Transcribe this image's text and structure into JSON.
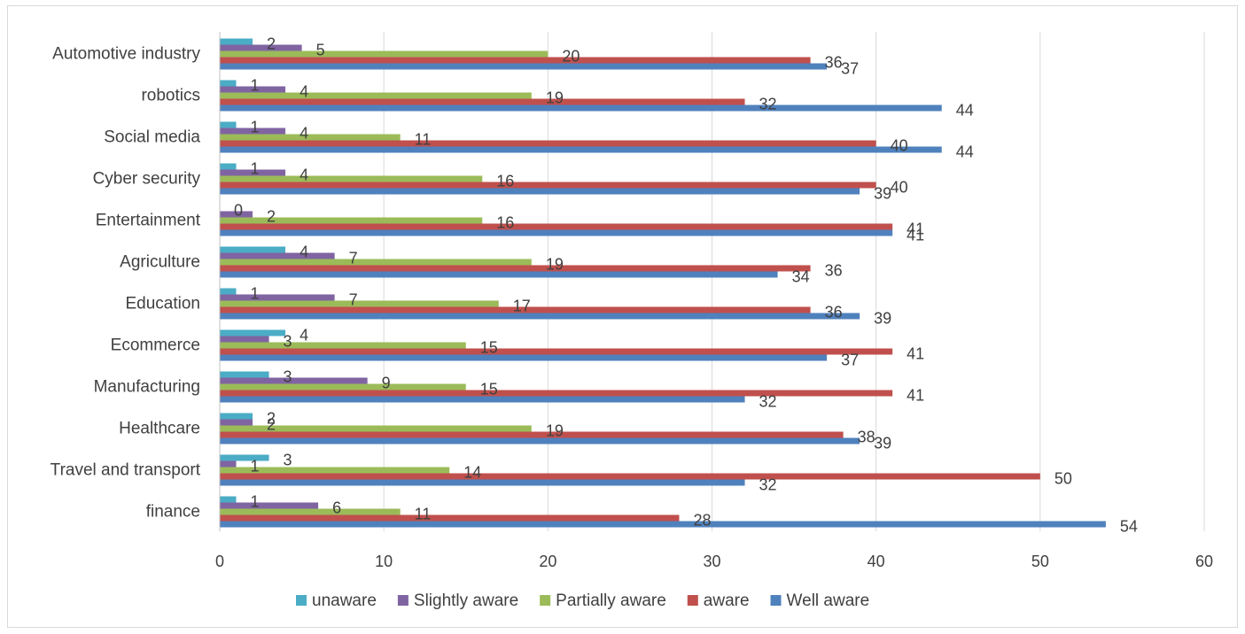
{
  "chart_data": {
    "type": "bar",
    "orientation": "horizontal",
    "categories": [
      "Automotive industry",
      "robotics",
      "Social media",
      "Cyber security",
      "Entertainment",
      "Agriculture",
      "Education",
      "Ecommerce",
      "Manufacturing",
      "Healthcare",
      "Travel and transport",
      "finance"
    ],
    "series": [
      {
        "name": "unaware",
        "color": "#4bacc6",
        "values": [
          2,
          1,
          1,
          1,
          0,
          4,
          1,
          4,
          3,
          2,
          3,
          1
        ]
      },
      {
        "name": "Slightly aware",
        "color": "#8064a2",
        "values": [
          5,
          4,
          4,
          4,
          2,
          7,
          7,
          3,
          9,
          2,
          1,
          6
        ]
      },
      {
        "name": "Partially aware",
        "color": "#9bbb59",
        "values": [
          20,
          19,
          11,
          16,
          16,
          19,
          17,
          15,
          15,
          19,
          14,
          11
        ]
      },
      {
        "name": "aware",
        "color": "#c0504d",
        "values": [
          36,
          32,
          40,
          40,
          41,
          36,
          36,
          41,
          41,
          38,
          50,
          28
        ]
      },
      {
        "name": "Well aware",
        "color": "#4f81bd",
        "values": [
          37,
          44,
          44,
          39,
          41,
          34,
          39,
          37,
          32,
          39,
          32,
          54
        ]
      }
    ],
    "xlim": [
      0,
      60
    ],
    "xticks": [
      "0",
      "10",
      "20",
      "30",
      "40",
      "50",
      "60"
    ],
    "grid": "vertical",
    "legend_position": "bottom",
    "title": "",
    "xlabel": "",
    "ylabel": ""
  }
}
